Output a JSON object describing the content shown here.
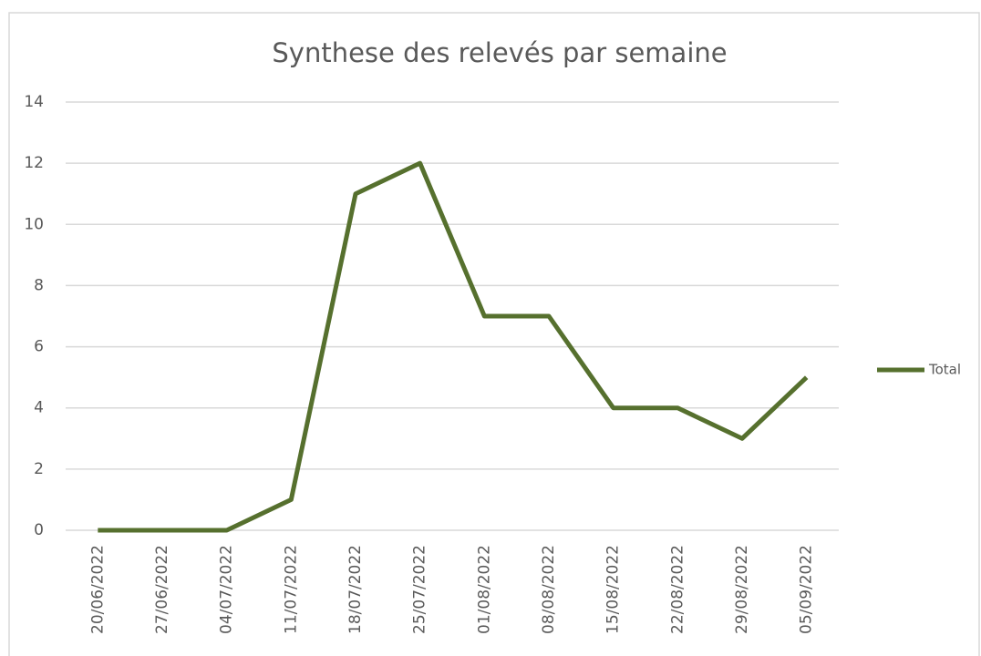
{
  "chart_data": {
    "type": "line",
    "title": "Synthese des relevés par semaine",
    "categories": [
      "20/06/2022",
      "27/06/2022",
      "04/07/2022",
      "11/07/2022",
      "18/07/2022",
      "25/07/2022",
      "01/08/2022",
      "08/08/2022",
      "15/08/2022",
      "22/08/2022",
      "29/08/2022",
      "05/09/2022"
    ],
    "series": [
      {
        "name": "Total",
        "color": "#56702e",
        "values": [
          0,
          0,
          0,
          1,
          11,
          12,
          7,
          7,
          4,
          4,
          3,
          5
        ]
      }
    ],
    "ylim": [
      0,
      14
    ],
    "yticks": [
      0,
      2,
      4,
      6,
      8,
      10,
      12,
      14
    ],
    "grid": true,
    "legend": "right"
  }
}
